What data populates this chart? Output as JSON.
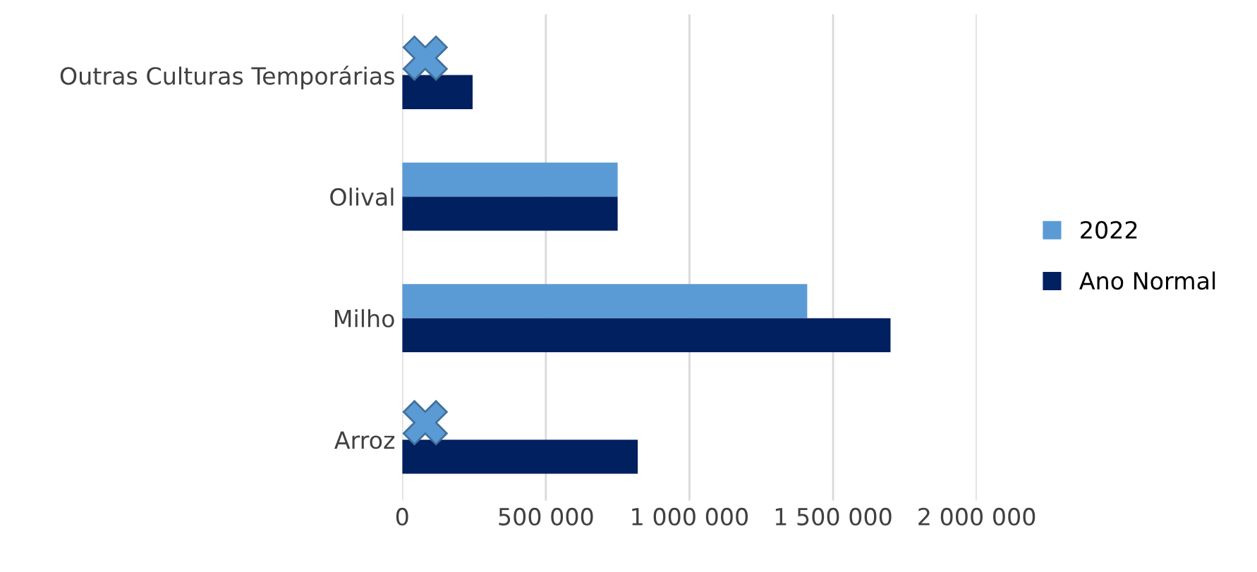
{
  "chart_data": {
    "type": "bar",
    "orientation": "horizontal",
    "categories": [
      "Outras Culturas Temporárias",
      "Olival",
      "Milho",
      "Arroz"
    ],
    "series": [
      {
        "name": "2022",
        "color": "#5b9bd5",
        "values": [
          null,
          750000,
          1410000,
          null
        ]
      },
      {
        "name": "Ano Normal",
        "color": "#002060",
        "values": [
          245000,
          750000,
          1700000,
          820000
        ]
      }
    ],
    "xlim": [
      0,
      2000000
    ],
    "xticks": [
      0,
      {
        "value": 500000,
        "label": "500 000"
      },
      {
        "value": 1000000,
        "label": "1 000 000"
      },
      {
        "value": 1500000,
        "label": "1 500 000"
      },
      {
        "value": 2000000,
        "label": "2 000 000"
      }
    ],
    "grid": "x",
    "legend": "right"
  }
}
